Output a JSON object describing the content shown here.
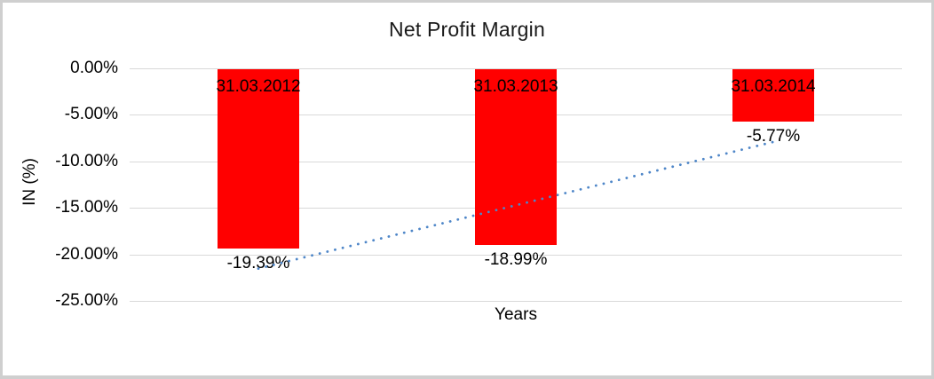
{
  "window": {
    "background_color": "#ffffff",
    "frame_border_color": "#cfcfcf"
  },
  "chart_data": {
    "type": "bar",
    "title": "Net Profit Margin",
    "xlabel": "Years",
    "ylabel": "IN (%)",
    "categories": [
      "31.03.2012",
      "31.03.2013",
      "31.03.2014"
    ],
    "values": [
      -19.39,
      -18.99,
      -5.77
    ],
    "value_labels": [
      "-19.39%",
      "-18.99%",
      "-5.77%"
    ],
    "category_label_position": "inside-top-of-bar",
    "value_label_position": "below-bar",
    "y_ticks": [
      {
        "label": "0.00%",
        "value": 0
      },
      {
        "label": "-5.00%",
        "value": -5
      },
      {
        "label": "-10.00%",
        "value": -10
      },
      {
        "label": "-15.00%",
        "value": -15
      },
      {
        "label": "-20.00%",
        "value": -20
      },
      {
        "label": "-25.00%",
        "value": -25
      }
    ],
    "ylim": [
      -25,
      0
    ],
    "grid": true,
    "legend": false,
    "bar_color": "#ff0000",
    "gridline_color": "#d9d9d9",
    "label_color": "#000000",
    "trendline": {
      "type": "linear",
      "style": "dotted",
      "color": "#4e86c8",
      "start_value": -21.53,
      "end_value": -7.91
    }
  }
}
